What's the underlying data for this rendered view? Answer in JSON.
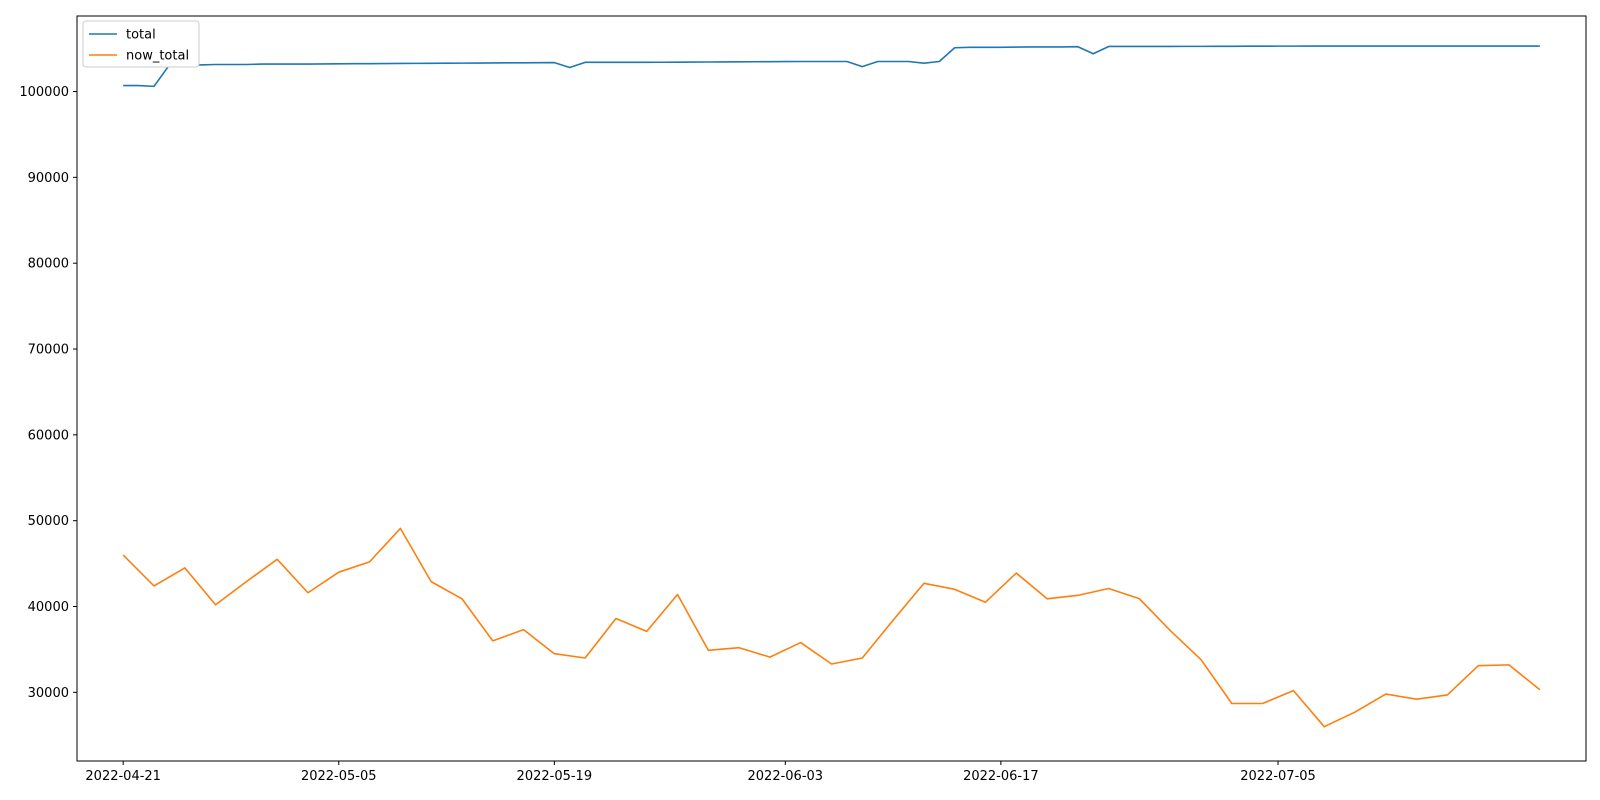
{
  "chart_data": {
    "type": "line",
    "title": "",
    "xlabel": "",
    "ylabel": "",
    "x_ticks": [
      "2022-04-21",
      "2022-05-05",
      "2022-05-19",
      "2022-06-03",
      "2022-06-17",
      "2022-07-05"
    ],
    "y_ticks": [
      30000,
      40000,
      50000,
      60000,
      70000,
      80000,
      90000,
      100000
    ],
    "ylim": [
      22000,
      108800
    ],
    "xlim": [
      "2022-04-18",
      "2022-07-25"
    ],
    "grid": false,
    "legend_position": "top-left",
    "series": [
      {
        "name": "total",
        "color": "#1f77b4",
        "points": [
          [
            "2022-04-21",
            100700
          ],
          [
            "2022-04-22",
            100700
          ],
          [
            "2022-04-23",
            100600
          ],
          [
            "2022-04-24",
            103100
          ],
          [
            "2022-04-25",
            103100
          ],
          [
            "2022-04-26",
            103100
          ],
          [
            "2022-04-27",
            103150
          ],
          [
            "2022-04-28",
            103150
          ],
          [
            "2022-04-29",
            103150
          ],
          [
            "2022-04-30",
            103200
          ],
          [
            "2022-05-01",
            103200
          ],
          [
            "2022-05-02",
            103200
          ],
          [
            "2022-05-03",
            103200
          ],
          [
            "2022-05-04",
            103220
          ],
          [
            "2022-05-05",
            103230
          ],
          [
            "2022-05-06",
            103240
          ],
          [
            "2022-05-07",
            103250
          ],
          [
            "2022-05-08",
            103260
          ],
          [
            "2022-05-09",
            103270
          ],
          [
            "2022-05-10",
            103280
          ],
          [
            "2022-05-11",
            103290
          ],
          [
            "2022-05-12",
            103300
          ],
          [
            "2022-05-13",
            103310
          ],
          [
            "2022-05-14",
            103320
          ],
          [
            "2022-05-15",
            103330
          ],
          [
            "2022-05-16",
            103340
          ],
          [
            "2022-05-17",
            103350
          ],
          [
            "2022-05-18",
            103360
          ],
          [
            "2022-05-19",
            103370
          ],
          [
            "2022-05-20",
            102800
          ],
          [
            "2022-05-21",
            103400
          ],
          [
            "2022-05-22",
            103400
          ],
          [
            "2022-05-23",
            103400
          ],
          [
            "2022-05-24",
            103400
          ],
          [
            "2022-05-25",
            103400
          ],
          [
            "2022-05-26",
            103410
          ],
          [
            "2022-05-27",
            103420
          ],
          [
            "2022-05-28",
            103430
          ],
          [
            "2022-05-29",
            103440
          ],
          [
            "2022-05-30",
            103450
          ],
          [
            "2022-05-31",
            103460
          ],
          [
            "2022-06-01",
            103470
          ],
          [
            "2022-06-02",
            103480
          ],
          [
            "2022-06-03",
            103490
          ],
          [
            "2022-06-04",
            103500
          ],
          [
            "2022-06-05",
            103500
          ],
          [
            "2022-06-06",
            103500
          ],
          [
            "2022-06-07",
            103500
          ],
          [
            "2022-06-08",
            102900
          ],
          [
            "2022-06-09",
            103500
          ],
          [
            "2022-06-10",
            103500
          ],
          [
            "2022-06-11",
            103500
          ],
          [
            "2022-06-12",
            103300
          ],
          [
            "2022-06-13",
            103500
          ],
          [
            "2022-06-14",
            105100
          ],
          [
            "2022-06-15",
            105150
          ],
          [
            "2022-06-16",
            105150
          ],
          [
            "2022-06-17",
            105150
          ],
          [
            "2022-06-18",
            105180
          ],
          [
            "2022-06-19",
            105200
          ],
          [
            "2022-06-20",
            105200
          ],
          [
            "2022-06-21",
            105200
          ],
          [
            "2022-06-22",
            105220
          ],
          [
            "2022-06-23",
            104400
          ],
          [
            "2022-06-24",
            105250
          ],
          [
            "2022-06-25",
            105250
          ],
          [
            "2022-06-26",
            105250
          ],
          [
            "2022-06-27",
            105250
          ],
          [
            "2022-06-28",
            105250
          ],
          [
            "2022-06-29",
            105260
          ],
          [
            "2022-06-30",
            105260
          ],
          [
            "2022-07-01",
            105270
          ],
          [
            "2022-07-02",
            105270
          ],
          [
            "2022-07-03",
            105280
          ],
          [
            "2022-07-04",
            105280
          ],
          [
            "2022-07-05",
            105290
          ],
          [
            "2022-07-06",
            105290
          ],
          [
            "2022-07-07",
            105300
          ],
          [
            "2022-07-08",
            105300
          ],
          [
            "2022-07-09",
            105300
          ],
          [
            "2022-07-10",
            105300
          ],
          [
            "2022-07-11",
            105300
          ],
          [
            "2022-07-12",
            105300
          ],
          [
            "2022-07-13",
            105300
          ],
          [
            "2022-07-14",
            105300
          ],
          [
            "2022-07-15",
            105300
          ],
          [
            "2022-07-16",
            105300
          ],
          [
            "2022-07-17",
            105300
          ],
          [
            "2022-07-18",
            105300
          ],
          [
            "2022-07-19",
            105300
          ],
          [
            "2022-07-20",
            105300
          ],
          [
            "2022-07-21",
            105300
          ],
          [
            "2022-07-22",
            105300
          ]
        ]
      },
      {
        "name": "now_total",
        "color": "#ff7f0e",
        "points": [
          [
            "2022-04-21",
            46000
          ],
          [
            "2022-04-23",
            42400
          ],
          [
            "2022-04-25",
            44500
          ],
          [
            "2022-04-27",
            40200
          ],
          [
            "2022-04-29",
            42900
          ],
          [
            "2022-05-01",
            45500
          ],
          [
            "2022-05-03",
            41600
          ],
          [
            "2022-05-05",
            44000
          ],
          [
            "2022-05-07",
            45200
          ],
          [
            "2022-05-09",
            49100
          ],
          [
            "2022-05-11",
            42900
          ],
          [
            "2022-05-13",
            40900
          ],
          [
            "2022-05-15",
            36000
          ],
          [
            "2022-05-17",
            37300
          ],
          [
            "2022-05-19",
            34500
          ],
          [
            "2022-05-21",
            34000
          ],
          [
            "2022-05-23",
            38600
          ],
          [
            "2022-05-25",
            37100
          ],
          [
            "2022-05-27",
            41400
          ],
          [
            "2022-05-29",
            34900
          ],
          [
            "2022-05-31",
            35200
          ],
          [
            "2022-06-02",
            34100
          ],
          [
            "2022-06-04",
            35800
          ],
          [
            "2022-06-06",
            33300
          ],
          [
            "2022-06-08",
            34000
          ],
          [
            "2022-06-10",
            38400
          ],
          [
            "2022-06-12",
            42700
          ],
          [
            "2022-06-14",
            42000
          ],
          [
            "2022-06-16",
            40500
          ],
          [
            "2022-06-18",
            43900
          ],
          [
            "2022-06-20",
            40900
          ],
          [
            "2022-06-22",
            41300
          ],
          [
            "2022-06-24",
            42100
          ],
          [
            "2022-06-26",
            40900
          ],
          [
            "2022-06-28",
            37200
          ],
          [
            "2022-06-30",
            33800
          ],
          [
            "2022-07-02",
            28700
          ],
          [
            "2022-07-04",
            28700
          ],
          [
            "2022-07-06",
            30200
          ],
          [
            "2022-07-08",
            26000
          ],
          [
            "2022-07-10",
            27700
          ],
          [
            "2022-07-12",
            29800
          ],
          [
            "2022-07-14",
            29200
          ],
          [
            "2022-07-16",
            29700
          ],
          [
            "2022-07-18",
            33100
          ],
          [
            "2022-07-20",
            33200
          ],
          [
            "2022-07-22",
            30300
          ]
        ]
      }
    ]
  }
}
